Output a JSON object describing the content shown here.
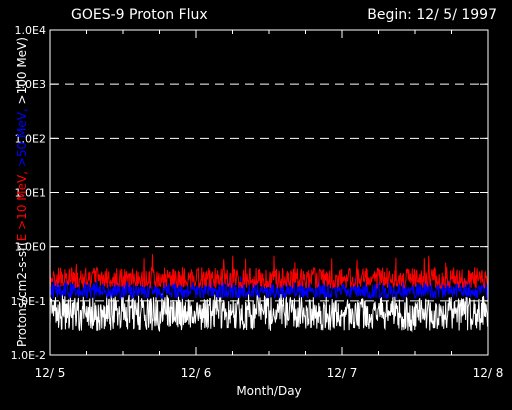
{
  "colors": {
    "background": "#000000",
    "axis": "#ffffff",
    "gridline": "#ffffff",
    "series_gt10": "#ff0000",
    "series_gt50": "#0000ff",
    "series_gt100": "#ffffff"
  },
  "chart_data": {
    "type": "line",
    "title": "GOES-9 Proton Flux",
    "subtitle": "Begin: 12/ 5/ 1997",
    "xlabel": "Month/Day",
    "ylabel_parts": [
      {
        "text": "Protons/cm2-s-sr(",
        "color": "#ffffff"
      },
      {
        "text": "E >10 MeV, ",
        "color": "#ff0000"
      },
      {
        "text": ">50 MeV, ",
        "color": "#0000ff"
      },
      {
        "text": ">100 MeV",
        "color": "#ffffff"
      },
      {
        "text": ")",
        "color": "#ffffff"
      }
    ],
    "y_scale": "log",
    "ylim": [
      0.01,
      10000
    ],
    "y_ticks": [
      {
        "value": 0.01,
        "label": "1.0E-2"
      },
      {
        "value": 0.1,
        "label": "1.0E-1"
      },
      {
        "value": 1,
        "label": "1.0E0"
      },
      {
        "value": 10,
        "label": "1.0E1"
      },
      {
        "value": 100,
        "label": "1.0E2"
      },
      {
        "value": 1000,
        "label": "1.0E3"
      },
      {
        "value": 10000,
        "label": "1.0E4"
      }
    ],
    "xlim": [
      0,
      3
    ],
    "x_ticks": [
      {
        "value": 0,
        "label": "12/ 5"
      },
      {
        "value": 1,
        "label": "12/ 6"
      },
      {
        "value": 2,
        "label": "12/ 7"
      },
      {
        "value": 3,
        "label": "12/ 8"
      }
    ],
    "grid": "dashed horizontal at decades",
    "series": [
      {
        "name": ">10 MeV",
        "color": "#ff0000",
        "baseline": 0.24,
        "noise_low": 0.17,
        "noise_high": 0.42,
        "spike_max": 0.75
      },
      {
        "name": ">50 MeV",
        "color": "#0000ff",
        "baseline": 0.15,
        "noise_low": 0.11,
        "noise_high": 0.22,
        "spike_max": 0.3
      },
      {
        "name": ">100 MeV",
        "color": "#ffffff",
        "baseline": 0.06,
        "noise_low": 0.028,
        "noise_high": 0.12,
        "spike_max": 0.15
      }
    ]
  }
}
